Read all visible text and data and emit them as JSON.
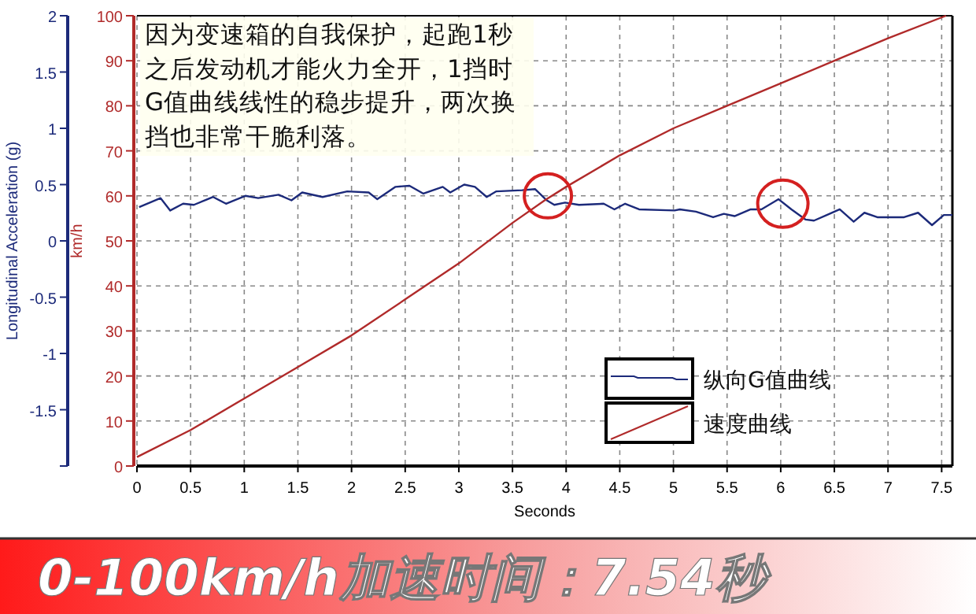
{
  "chart_data": {
    "type": "line",
    "title": "0-100km/h加速时间：7.54秒",
    "xlabel": "Seconds",
    "ylabel": "Longitudinal Acceleration (g)",
    "y2label": "km/h",
    "annotations": [
      "因为变速箱的自我保护，起跑1秒之后发动机才能火力全开，1挡时G值曲线线性的稳步提升，两次换挡也非常干脆利落。"
    ],
    "xlim": [
      0,
      7.6
    ],
    "xticks": [
      0,
      0.5,
      1,
      1.5,
      2,
      2.5,
      3,
      3.5,
      4,
      4.5,
      5,
      5.5,
      6,
      6.5,
      7,
      7.5
    ],
    "ylim": [
      -2,
      2
    ],
    "yticks": [
      {
        "value": -2,
        "label": null
      },
      -1.5,
      -1,
      -0.5,
      0,
      0.5,
      1,
      1.5,
      2
    ],
    "y2lim": [
      0,
      100
    ],
    "y2ticks": [
      0,
      10,
      20,
      30,
      40,
      50,
      60,
      70,
      80,
      90,
      100
    ],
    "grid": true,
    "legend": "bottom right",
    "marker": "none",
    "line_style": "solid",
    "series": [
      {
        "name": "纵向G值曲线",
        "color": "#1c2a7a",
        "x": [
          0.02,
          0.22,
          0.31,
          0.43,
          0.53,
          0.71,
          0.83,
          1.01,
          1.13,
          1.32,
          1.44,
          1.54,
          1.73,
          1.96,
          2.16,
          2.24,
          2.41,
          2.54,
          2.67,
          2.85,
          2.92,
          3.05,
          3.15,
          3.26,
          3.35,
          3.59,
          3.71,
          3.82,
          3.89,
          3.99,
          4.12,
          4.35,
          4.45,
          4.55,
          4.68,
          5.01,
          5.06,
          5.21,
          5.37,
          5.47,
          5.57,
          5.72,
          5.82,
          5.98,
          6.1,
          6.23,
          6.31,
          6.43,
          6.55,
          6.68,
          6.78,
          6.9,
          7.15,
          7.28,
          7.41,
          7.52,
          7.6
        ],
        "values": [
          0.3,
          0.38,
          0.27,
          0.33,
          0.32,
          0.39,
          0.33,
          0.4,
          0.38,
          0.41,
          0.36,
          0.43,
          0.39,
          0.44,
          0.43,
          0.37,
          0.48,
          0.49,
          0.42,
          0.48,
          0.43,
          0.5,
          0.48,
          0.39,
          0.44,
          0.45,
          0.46,
          0.36,
          0.32,
          0.34,
          0.32,
          0.33,
          0.28,
          0.33,
          0.28,
          0.27,
          0.28,
          0.26,
          0.21,
          0.24,
          0.22,
          0.28,
          0.28,
          0.37,
          0.28,
          0.19,
          0.18,
          0.23,
          0.28,
          0.17,
          0.25,
          0.21,
          0.21,
          0.25,
          0.14,
          0.23,
          0.23
        ]
      },
      {
        "name": "速度曲线",
        "color": "#b02a2a",
        "axis": "y2",
        "x": [
          0,
          0.5,
          1,
          1.5,
          2,
          2.5,
          3,
          3.5,
          3.8,
          4,
          4.5,
          5,
          5.5,
          6,
          6.5,
          7,
          7.54
        ],
        "values": [
          2,
          8,
          15,
          22,
          29,
          37,
          45,
          54,
          59,
          62,
          69,
          75,
          80,
          85,
          90,
          95,
          100
        ]
      }
    ]
  }
}
